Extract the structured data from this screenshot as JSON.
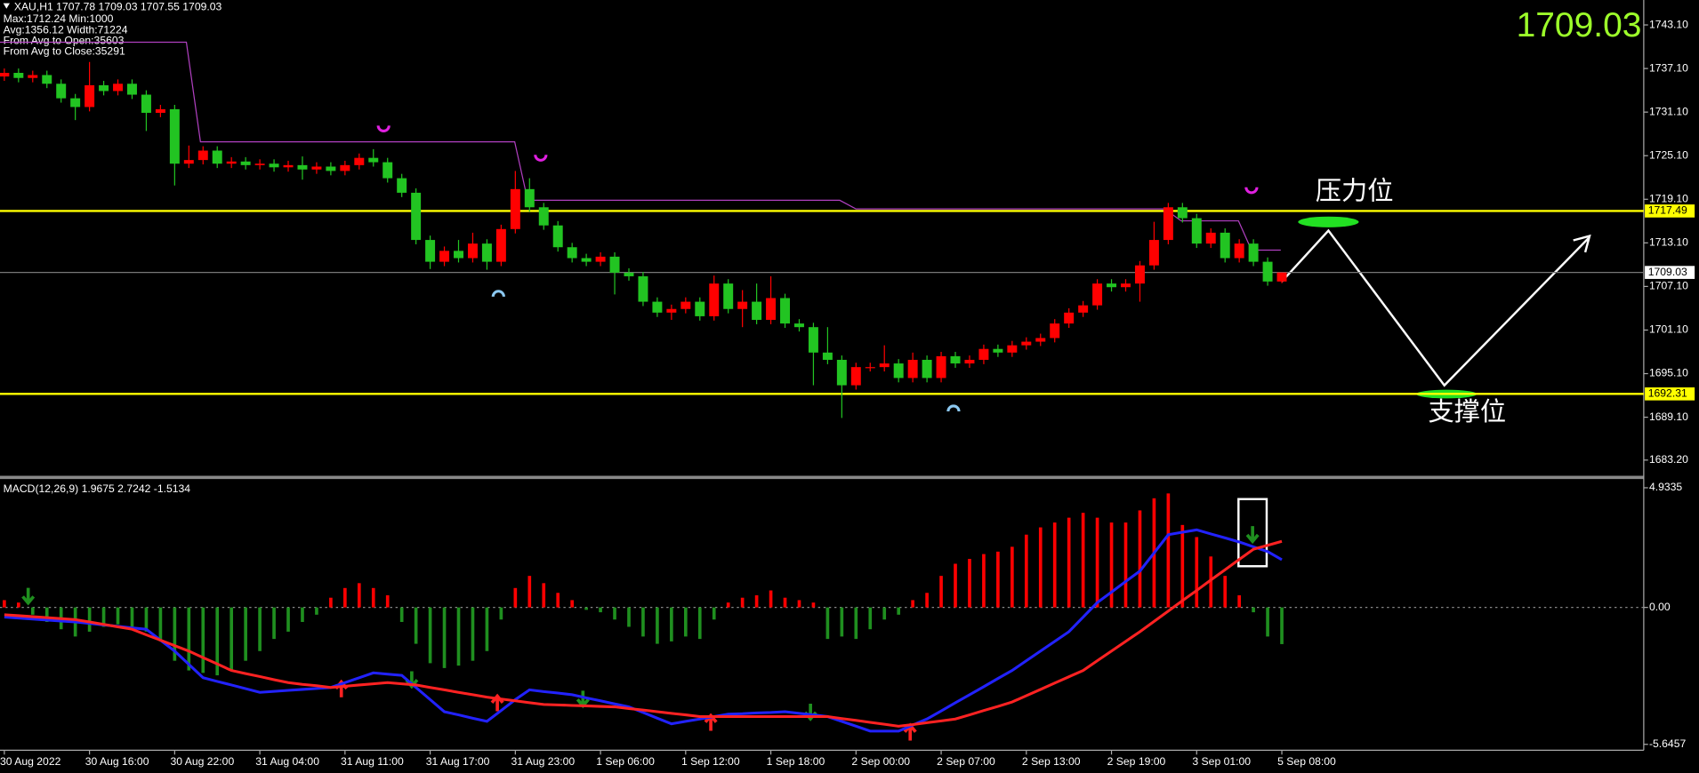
{
  "chart_data": [
    {
      "type": "candlestick",
      "title": "XAU,H1  1707.78 1709.03 1707.55 1709.03",
      "info": [
        "Max:1712.24 Min:1000",
        "Avg:1356.12 Width:71224",
        "From Avg to Open:35603",
        "From Avg to Close:35291"
      ],
      "last_price": 1709.03,
      "levels": [
        1717.49,
        1692.31
      ],
      "level_color": "#ffff00",
      "annotations": [
        "压力位",
        "支撑位"
      ],
      "up_color": "#ff0000",
      "down_color": "#22c422",
      "ylim": [
        1680.96,
        1746.53
      ],
      "yticks": [
        {
          "value": 1743.1,
          "label": "1743.10"
        },
        {
          "value": 1737.1,
          "label": "1737.10"
        },
        {
          "value": 1731.1,
          "label": "1731.10"
        },
        {
          "value": 1725.1,
          "label": "1725.10"
        },
        {
          "value": 1719.1,
          "label": "1719.10"
        },
        {
          "value": 1713.1,
          "label": "1713.10"
        },
        {
          "value": 1707.1,
          "label": "1707.10"
        },
        {
          "value": 1701.1,
          "label": "1701.10"
        },
        {
          "value": 1695.1,
          "label": "1695.10"
        },
        {
          "value": 1689.1,
          "label": "1689.10"
        },
        {
          "value": 1683.2,
          "label": "1683.20"
        }
      ],
      "categories": [
        "30 Aug 2022",
        null,
        null,
        null,
        null,
        null,
        "30 Aug 16:00",
        null,
        null,
        null,
        null,
        null,
        "30 Aug 22:00",
        null,
        null,
        null,
        null,
        null,
        "31 Aug 04:00",
        null,
        null,
        null,
        null,
        null,
        "31 Aug 11:00",
        null,
        null,
        null,
        null,
        null,
        "31 Aug 17:00",
        null,
        null,
        null,
        null,
        null,
        "31 Aug 23:00",
        null,
        null,
        null,
        null,
        null,
        "1 Sep 06:00",
        null,
        null,
        null,
        null,
        null,
        "1 Sep 12:00",
        null,
        null,
        null,
        null,
        null,
        "1 Sep 18:00",
        null,
        null,
        null,
        null,
        null,
        "2 Sep 00:00",
        null,
        null,
        null,
        null,
        null,
        "2 Sep 07:00",
        null,
        null,
        null,
        null,
        null,
        "2 Sep 13:00",
        null,
        null,
        null,
        null,
        null,
        "2 Sep 19:00",
        null,
        null,
        null,
        null,
        null,
        "3 Sep 01:00",
        null,
        null,
        null,
        null,
        null,
        "5 Sep 08:00"
      ],
      "open": [
        1736.0,
        1736.5,
        1735.8,
        1736.2,
        1735.0,
        1733.0,
        1731.8,
        1734.8,
        1734.0,
        1735.0,
        1733.5,
        1731.0,
        1731.5,
        1724.0,
        1724.5,
        1725.8,
        1724.0,
        1724.3,
        1723.8,
        1724.0,
        1723.5,
        1723.8,
        1723.2,
        1723.6,
        1723.0,
        1723.8,
        1724.8,
        1724.2,
        1722.0,
        1720.0,
        1713.5,
        1710.5,
        1712.0,
        1711.0,
        1713.0,
        1710.5,
        1715.0,
        1720.5,
        1718.0,
        1715.5,
        1712.5,
        1711.0,
        1710.5,
        1711.2,
        1709.0,
        1708.5,
        1705.0,
        1703.5,
        1704.0,
        1705.0,
        1703.0,
        1707.5,
        1704.0,
        1705.0,
        1702.5,
        1705.5,
        1702.0,
        1701.5,
        1698.0,
        1697.0,
        1693.5,
        1696.0,
        1696.0,
        1696.5,
        1694.5,
        1697.0,
        1694.5,
        1697.5,
        1696.5,
        1697.0,
        1698.5,
        1698.0,
        1699.0,
        1699.5,
        1700.0,
        1702.0,
        1703.5,
        1704.5,
        1707.5,
        1707.0,
        1707.5,
        1710.0,
        1713.5,
        1718.0,
        1716.5,
        1713.0,
        1714.5,
        1711.0,
        1713.0,
        1710.5,
        1707.78
      ],
      "high": [
        1737.1,
        1737.1,
        1736.8,
        1736.8,
        1735.6,
        1733.6,
        1738.0,
        1735.4,
        1735.6,
        1735.6,
        1734.1,
        1732.1,
        1732.1,
        1726.5,
        1726.4,
        1726.4,
        1724.9,
        1724.9,
        1724.6,
        1724.6,
        1724.4,
        1725.0,
        1724.2,
        1724.2,
        1724.4,
        1725.4,
        1726.0,
        1724.8,
        1722.6,
        1720.6,
        1714.1,
        1712.6,
        1713.5,
        1714.5,
        1713.6,
        1715.6,
        1723.0,
        1722.0,
        1718.6,
        1716.1,
        1713.1,
        1711.6,
        1711.8,
        1711.8,
        1709.6,
        1709.1,
        1705.6,
        1704.6,
        1705.6,
        1705.6,
        1708.6,
        1708.1,
        1706.6,
        1707.5,
        1708.5,
        1706.1,
        1702.6,
        1702.1,
        1701.5,
        1697.6,
        1696.6,
        1696.6,
        1699.0,
        1697.1,
        1698.0,
        1697.6,
        1698.1,
        1698.1,
        1697.6,
        1699.1,
        1699.1,
        1699.6,
        1700.1,
        1700.6,
        1702.6,
        1704.1,
        1705.1,
        1708.1,
        1708.1,
        1708.1,
        1710.6,
        1716.0,
        1718.6,
        1718.6,
        1717.1,
        1715.1,
        1715.1,
        1713.6,
        1713.6,
        1711.1,
        1709.03
      ],
      "low": [
        1735.4,
        1735.2,
        1735.2,
        1734.4,
        1732.4,
        1730.0,
        1731.2,
        1733.4,
        1733.4,
        1732.9,
        1728.5,
        1730.4,
        1721.0,
        1723.4,
        1723.9,
        1723.4,
        1723.4,
        1723.2,
        1723.2,
        1722.9,
        1722.9,
        1721.8,
        1722.6,
        1722.4,
        1722.4,
        1723.2,
        1723.6,
        1721.4,
        1719.4,
        1712.9,
        1709.5,
        1709.9,
        1710.4,
        1710.4,
        1709.4,
        1709.9,
        1714.4,
        1717.4,
        1714.9,
        1711.9,
        1710.4,
        1709.9,
        1709.9,
        1706.0,
        1707.9,
        1704.4,
        1702.9,
        1702.5,
        1703.4,
        1702.4,
        1702.4,
        1703.4,
        1701.5,
        1701.9,
        1701.9,
        1701.4,
        1700.9,
        1693.5,
        1696.4,
        1689.0,
        1692.9,
        1695.4,
        1695.4,
        1693.9,
        1693.9,
        1693.9,
        1693.9,
        1695.9,
        1695.9,
        1696.4,
        1697.4,
        1697.4,
        1698.4,
        1698.9,
        1699.4,
        1701.4,
        1702.9,
        1703.9,
        1706.4,
        1706.4,
        1705.0,
        1709.4,
        1712.9,
        1715.9,
        1712.4,
        1712.4,
        1710.4,
        1710.4,
        1709.9,
        1707.2,
        1707.55
      ],
      "close": [
        1736.5,
        1735.8,
        1736.2,
        1735.0,
        1733.0,
        1731.8,
        1734.8,
        1734.0,
        1735.0,
        1733.5,
        1731.0,
        1731.5,
        1724.0,
        1724.5,
        1725.8,
        1724.0,
        1724.3,
        1723.8,
        1724.0,
        1723.5,
        1723.8,
        1723.2,
        1723.6,
        1723.0,
        1723.8,
        1724.8,
        1724.2,
        1722.0,
        1720.0,
        1713.5,
        1710.5,
        1712.0,
        1711.0,
        1713.0,
        1710.5,
        1715.0,
        1720.5,
        1718.0,
        1715.5,
        1712.5,
        1711.0,
        1710.5,
        1711.2,
        1709.0,
        1708.5,
        1705.0,
        1703.5,
        1704.0,
        1705.0,
        1703.0,
        1707.5,
        1704.0,
        1705.0,
        1702.5,
        1705.5,
        1702.0,
        1701.5,
        1698.0,
        1697.0,
        1693.5,
        1696.0,
        1696.0,
        1696.5,
        1694.5,
        1697.0,
        1694.5,
        1697.5,
        1696.5,
        1697.0,
        1698.5,
        1698.0,
        1699.0,
        1699.5,
        1700.0,
        1702.0,
        1703.5,
        1704.5,
        1707.5,
        1707.0,
        1707.5,
        1710.0,
        1713.5,
        1718.0,
        1716.5,
        1713.0,
        1714.5,
        1711.0,
        1713.0,
        1710.5,
        1707.78,
        1709.03
      ]
    },
    {
      "type": "macd",
      "title": "MACD(12,26,9) 1.9675 2.7242 -1.5134",
      "ylim": [
        -5.89,
        5.27
      ],
      "yticks": [
        4.9335,
        {
          "value": 0,
          "label": "0.00"
        },
        -5.6457
      ],
      "pos_color": "#ff0000",
      "neg_color": "#1f8f1f",
      "values": [
        0.3,
        0.2,
        -0.3,
        -0.6,
        -0.9,
        -1.2,
        -1.0,
        -0.8,
        -0.7,
        -0.8,
        -1.0,
        -1.4,
        -2.2,
        -2.6,
        -2.7,
        -2.8,
        -2.6,
        -2.2,
        -1.8,
        -1.3,
        -1.0,
        -0.6,
        -0.3,
        0.4,
        0.8,
        1.0,
        0.8,
        0.5,
        -0.6,
        -1.5,
        -2.3,
        -2.5,
        -2.4,
        -2.2,
        -1.8,
        -0.5,
        0.8,
        1.3,
        1.0,
        0.6,
        0.3,
        -0.1,
        -0.2,
        -0.5,
        -0.8,
        -1.2,
        -1.5,
        -1.4,
        -1.2,
        -1.3,
        -0.5,
        0.2,
        0.4,
        0.5,
        0.7,
        0.4,
        0.3,
        0.2,
        -1.3,
        -1.2,
        -1.3,
        -0.9,
        -0.5,
        -0.3,
        0.3,
        0.6,
        1.3,
        1.8,
        2.0,
        2.2,
        2.3,
        2.5,
        3.0,
        3.3,
        3.5,
        3.7,
        3.9,
        3.7,
        3.5,
        3.5,
        4.0,
        4.5,
        4.7,
        3.4,
        2.9,
        2.1,
        1.3,
        0.5,
        -0.2,
        -1.2,
        -1.5134
      ],
      "series": [
        {
          "color": "#2222ff",
          "values": [
            -0.4,
            -0.44,
            -0.48,
            -0.52,
            -0.56,
            -0.6,
            -0.66,
            -0.72,
            -0.78,
            -0.84,
            -0.9,
            -1.35,
            -1.8,
            -2.35,
            -2.9,
            -3.05,
            -3.2,
            -3.35,
            -3.5,
            -3.46,
            -3.42,
            -3.38,
            -3.34,
            -3.3,
            -3.1,
            -2.9,
            -2.7,
            -2.75,
            -2.8,
            -3.3,
            -3.8,
            -4.3,
            -4.43,
            -4.57,
            -4.7,
            -4.25,
            -3.8,
            -3.4,
            -3.47,
            -3.53,
            -3.6,
            -3.73,
            -3.85,
            -3.98,
            -4.1,
            -4.33,
            -4.57,
            -4.8,
            -4.7,
            -4.6,
            -4.5,
            -4.4,
            -4.38,
            -4.35,
            -4.33,
            -4.3,
            -4.37,
            -4.43,
            -4.5,
            -4.7,
            -4.9,
            -5.1,
            -5.1,
            -5.1,
            -4.85,
            -4.6,
            -4.27,
            -3.93,
            -3.6,
            -3.27,
            -2.93,
            -2.6,
            -2.2,
            -1.8,
            -1.4,
            -1.0,
            -0.4,
            0.2,
            0.63,
            1.07,
            1.5,
            2.25,
            3.0,
            3.1,
            3.2,
            3.03,
            2.87,
            2.7,
            2.5,
            2.3,
            1.9675
          ]
        },
        {
          "color": "#ff2222",
          "values": [
            -0.3,
            -0.34,
            -0.38,
            -0.42,
            -0.46,
            -0.5,
            -0.6,
            -0.7,
            -0.8,
            -0.9,
            -1.13,
            -1.35,
            -1.58,
            -1.8,
            -2.07,
            -2.33,
            -2.6,
            -2.73,
            -2.85,
            -2.98,
            -3.1,
            -3.17,
            -3.23,
            -3.3,
            -3.25,
            -3.2,
            -3.15,
            -3.1,
            -3.15,
            -3.2,
            -3.3,
            -3.4,
            -3.5,
            -3.6,
            -3.7,
            -3.78,
            -3.85,
            -3.93,
            -4.0,
            -4.02,
            -4.04,
            -4.06,
            -4.08,
            -4.1,
            -4.17,
            -4.23,
            -4.3,
            -4.37,
            -4.43,
            -4.5,
            -4.5,
            -4.5,
            -4.5,
            -4.5,
            -4.5,
            -4.5,
            -4.5,
            -4.5,
            -4.5,
            -4.58,
            -4.66,
            -4.74,
            -4.82,
            -4.9,
            -4.83,
            -4.75,
            -4.68,
            -4.6,
            -4.43,
            -4.25,
            -4.08,
            -3.9,
            -3.64,
            -3.38,
            -3.12,
            -2.86,
            -2.6,
            -2.2,
            -1.8,
            -1.4,
            -1.0,
            -0.58,
            -0.15,
            0.28,
            0.7,
            1.13,
            1.55,
            1.98,
            2.4,
            2.56,
            2.7242
          ]
        }
      ]
    }
  ]
}
